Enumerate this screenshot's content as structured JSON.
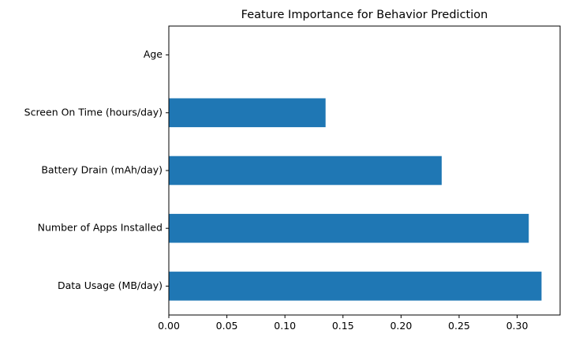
{
  "chart_data": {
    "type": "bar",
    "orientation": "horizontal",
    "title": "Feature Importance for Behavior Prediction",
    "xlabel": "",
    "ylabel": "",
    "categories": [
      "Data Usage (MB/day)",
      "Number of Apps Installed",
      "Battery Drain (mAh/day)",
      "Screen On Time (hours/day)",
      "Age"
    ],
    "values": [
      0.321,
      0.31,
      0.235,
      0.135,
      0.0
    ],
    "xlim": [
      0.0,
      0.337
    ],
    "xticks": [
      "0.00",
      "0.05",
      "0.10",
      "0.15",
      "0.20",
      "0.25",
      "0.30"
    ],
    "bar_color": "#1f77b4",
    "grid": false,
    "legend": "none"
  }
}
